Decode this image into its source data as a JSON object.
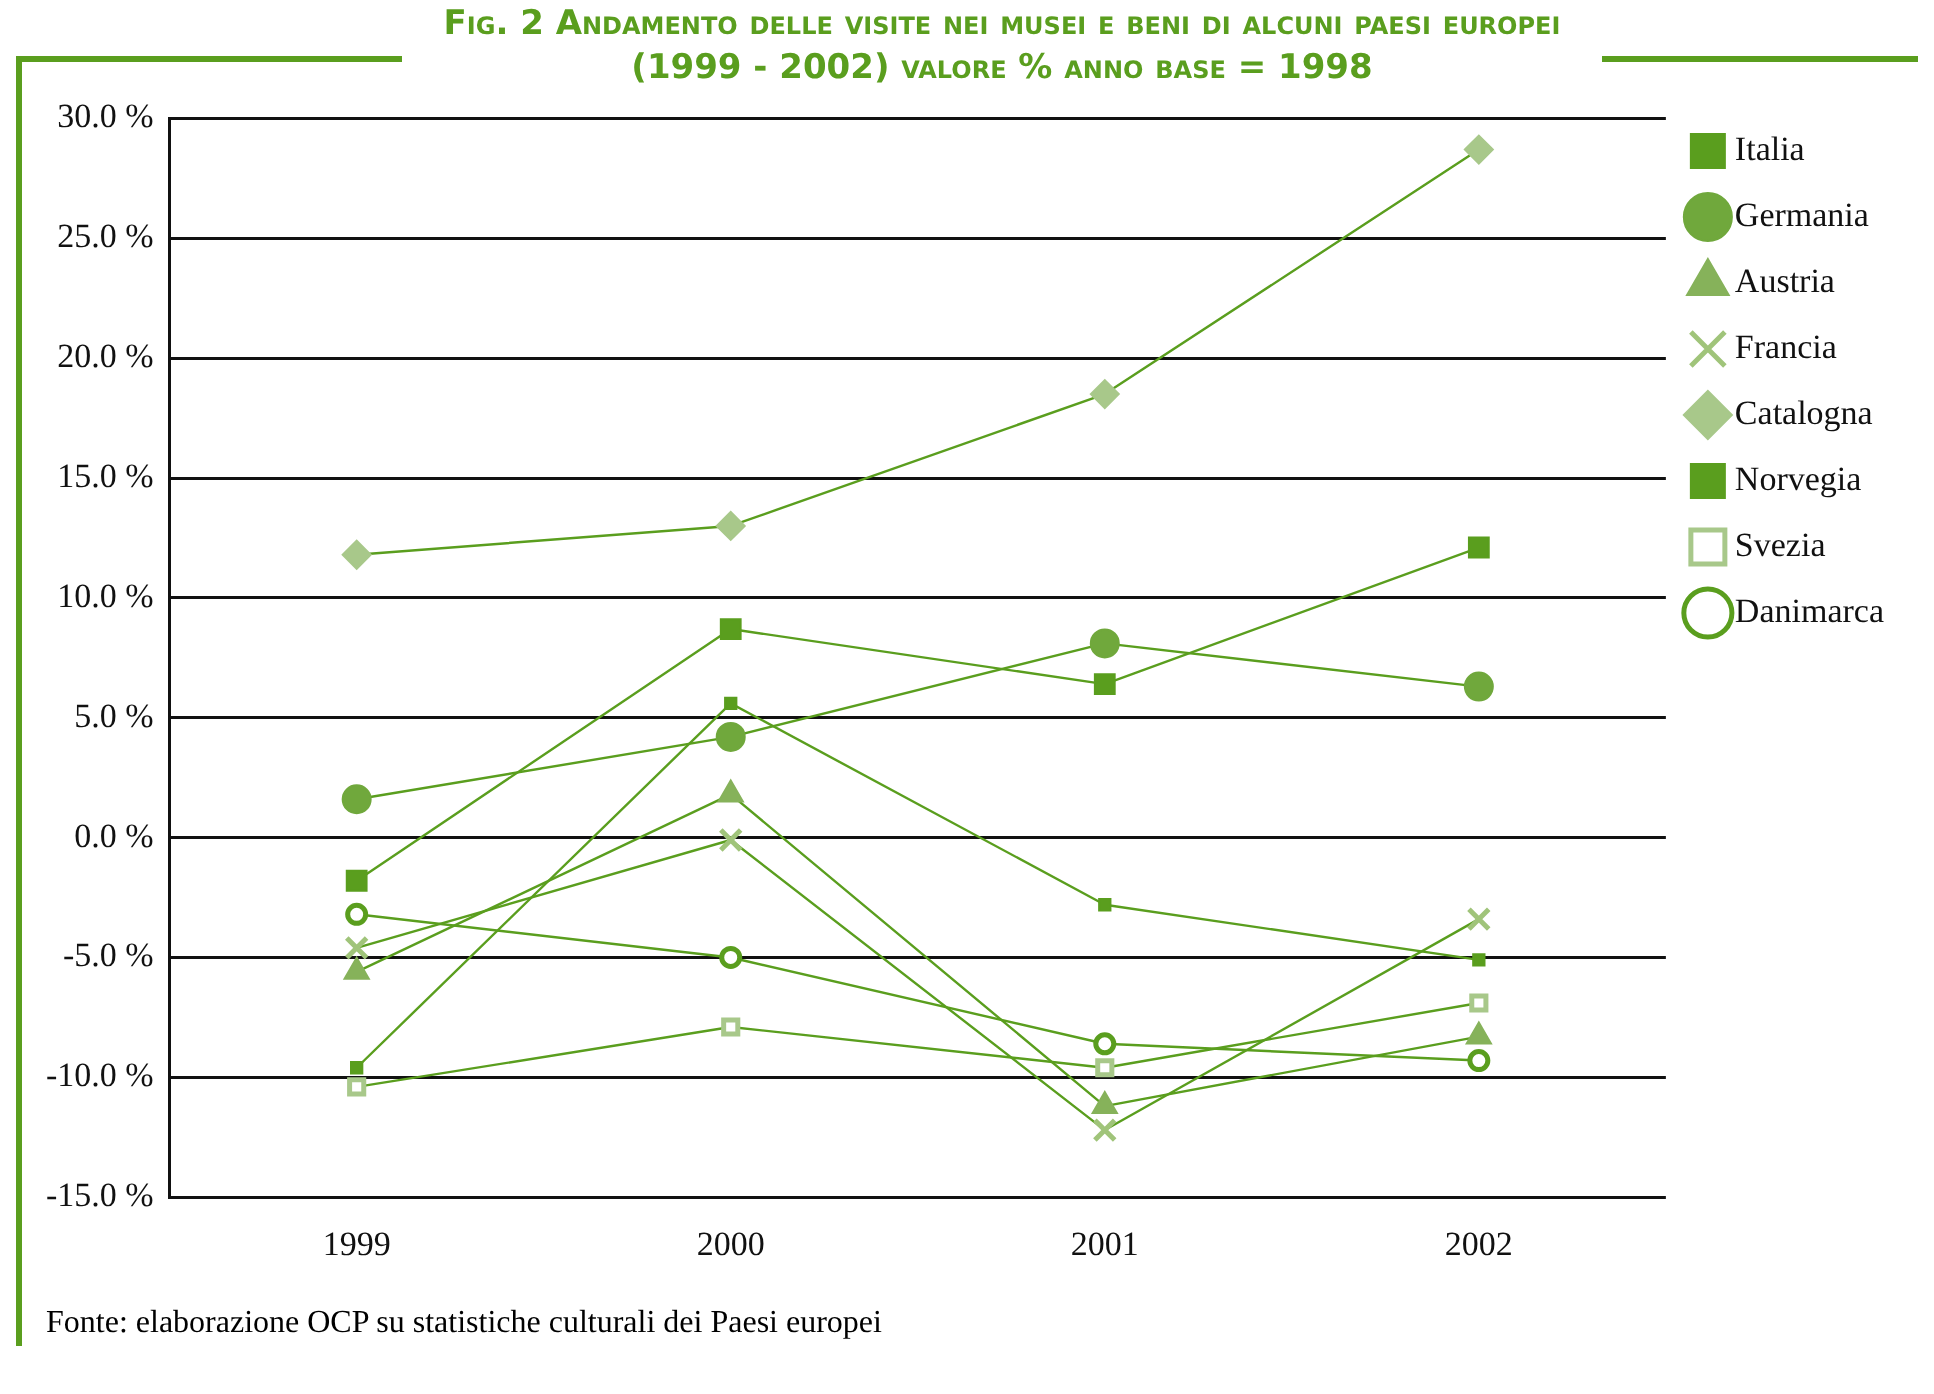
{
  "chart_data": {
    "type": "line",
    "title": "Fig. 2 Andamento delle visite nei musei e beni di alcuni paesi europei (1999 - 2002) valore % anno base = 1998",
    "categories": [
      "1999",
      "2000",
      "2001",
      "2002"
    ],
    "series": [
      {
        "name": "Italia",
        "color": "#5a9e1e",
        "marker": "square",
        "values": [
          -1.8,
          8.7,
          6.4,
          12.1
        ]
      },
      {
        "name": "Germania",
        "color": "#70a83c",
        "marker": "circle",
        "values": [
          1.6,
          4.2,
          8.1,
          6.3
        ]
      },
      {
        "name": "Austria",
        "color": "#86b25a",
        "marker": "triangle",
        "values": [
          -5.6,
          1.8,
          -11.2,
          -8.3
        ]
      },
      {
        "name": "Francia",
        "color": "#a0c47a",
        "marker": "cross",
        "values": [
          -4.6,
          -0.1,
          -12.2,
          -3.4
        ]
      },
      {
        "name": "Catalogna",
        "color": "#a8c88a",
        "marker": "diamond",
        "values": [
          11.8,
          13.0,
          18.5,
          28.7
        ]
      },
      {
        "name": "Norvegia",
        "color": "#5a9e1e",
        "marker": "square",
        "values": [
          -9.6,
          5.6,
          -2.8,
          -5.1
        ]
      },
      {
        "name": "Svezia",
        "color": "#a8c88a",
        "marker": "square",
        "values": [
          -10.4,
          -7.9,
          -9.6,
          -6.9
        ]
      },
      {
        "name": "Danimarca",
        "color": "#5a9e1e",
        "marker": "circle",
        "values": [
          -3.2,
          -5.0,
          -8.6,
          -9.3
        ]
      }
    ],
    "ylim": [
      -15,
      30
    ],
    "yticks": [
      {
        "value": -15,
        "label": "-15.0 %"
      },
      {
        "value": -10,
        "label": "-10.0 %"
      },
      {
        "value": -5,
        "label": "-5.0 %"
      },
      {
        "value": 0,
        "label": "0.0 %"
      },
      {
        "value": 5,
        "label": "5.0 %"
      },
      {
        "value": 10,
        "label": "10.0 %"
      },
      {
        "value": 15,
        "label": "15.0 %"
      },
      {
        "value": 20,
        "label": "20.0 %"
      },
      {
        "value": 25,
        "label": "25.0 %"
      },
      {
        "value": 30,
        "label": "30.0 %"
      }
    ],
    "grid": "y",
    "legend": "right",
    "line_style": "solid",
    "annotations": [
      "Fonte: elaborazione OCP su statistiche culturali dei Paesi europei"
    ]
  }
}
